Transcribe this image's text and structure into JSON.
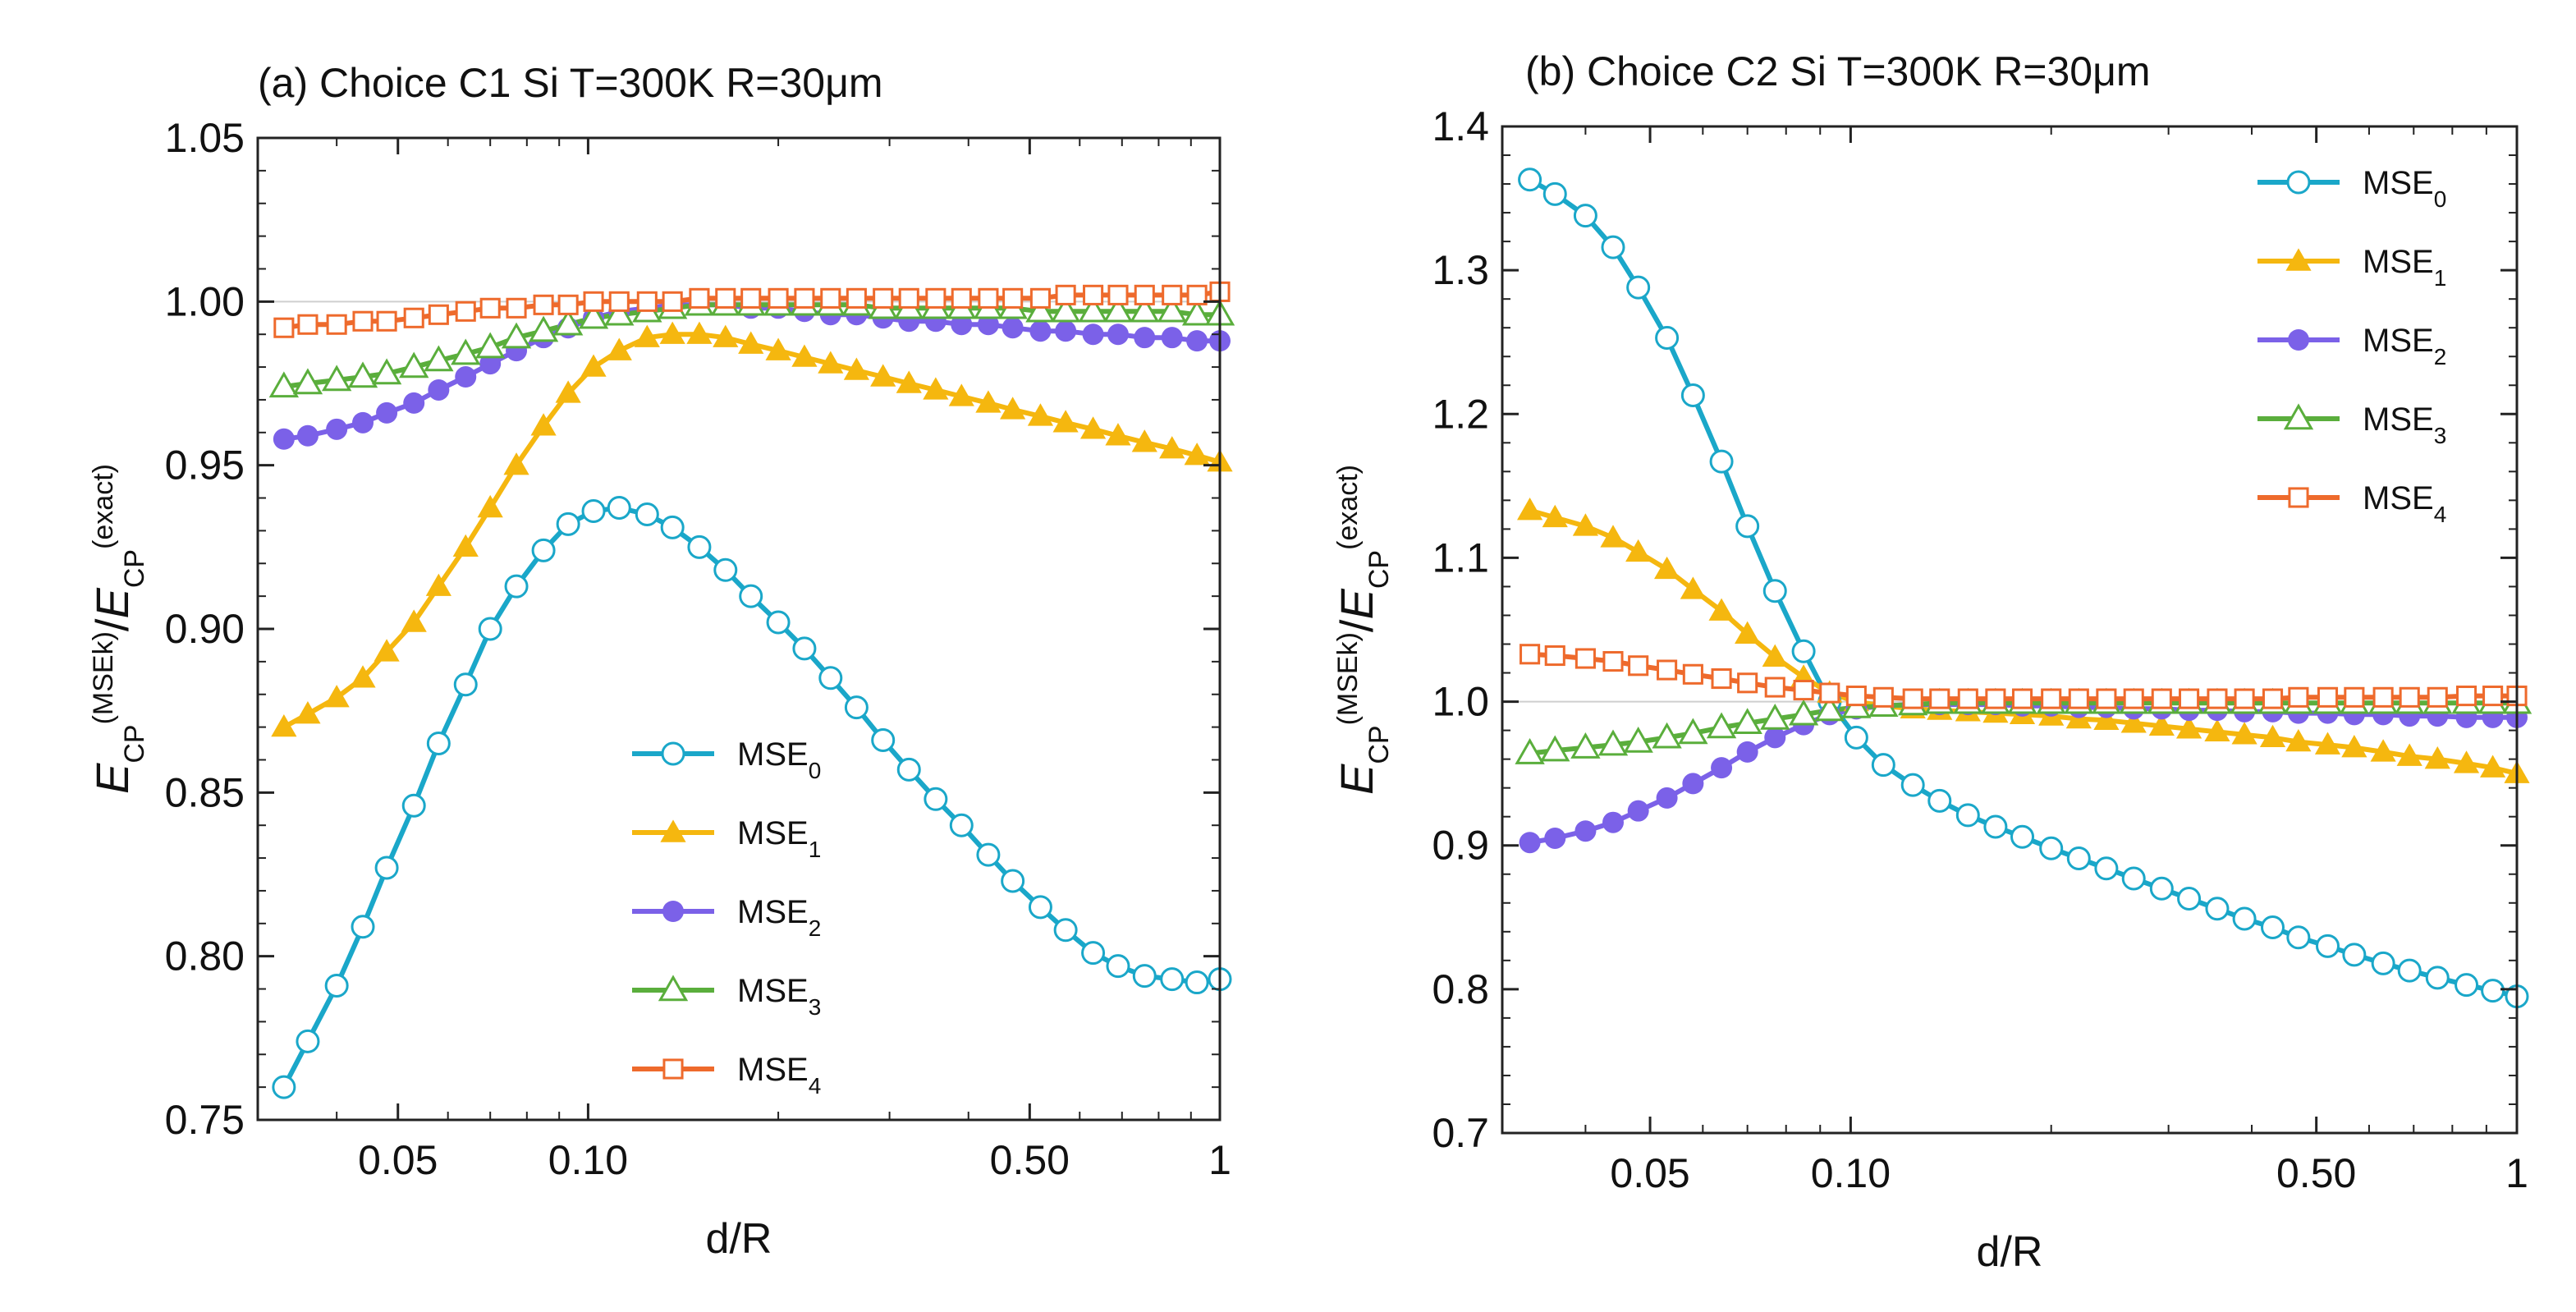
{
  "chart_data": [
    {
      "type": "line",
      "title": "(a) Choice C1 Si T=300K R=30μm",
      "xlabel": "d/R",
      "ylabel": "E_CP^(MSE_k)/E_CP^(exact)",
      "xscale": "log",
      "xlim": [
        0.03,
        1
      ],
      "ylim": [
        0.75,
        1.05
      ],
      "xticks": [
        0.05,
        0.1,
        0.5,
        1
      ],
      "xtick_labels": [
        "0.05",
        "0.10",
        "0.50",
        "1"
      ],
      "yticks": [
        0.75,
        0.8,
        0.85,
        0.9,
        0.95,
        1.0,
        1.05
      ],
      "ytick_labels": [
        "0.75",
        "0.80",
        "0.85",
        "0.90",
        "0.95",
        "1.00",
        "1.05"
      ],
      "reference_line": 1.0,
      "legend_position": "lower-center",
      "x": [
        0.033,
        0.036,
        0.04,
        0.044,
        0.048,
        0.053,
        0.058,
        0.064,
        0.07,
        0.077,
        0.085,
        0.093,
        0.102,
        0.112,
        0.124,
        0.136,
        0.15,
        0.165,
        0.181,
        0.2,
        0.22,
        0.242,
        0.266,
        0.293,
        0.322,
        0.355,
        0.39,
        0.43,
        0.47,
        0.52,
        0.57,
        0.63,
        0.69,
        0.76,
        0.84,
        0.92,
        1.0
      ],
      "series": [
        {
          "name": "MSE0",
          "color": "#1aa7c9",
          "marker": "circle-open",
          "values": [
            0.76,
            0.774,
            0.791,
            0.809,
            0.827,
            0.846,
            0.865,
            0.883,
            0.9,
            0.913,
            0.924,
            0.932,
            0.936,
            0.937,
            0.935,
            0.931,
            0.925,
            0.918,
            0.91,
            0.902,
            0.894,
            0.885,
            0.876,
            0.866,
            0.857,
            0.848,
            0.84,
            0.831,
            0.823,
            0.815,
            0.808,
            0.801,
            0.797,
            0.794,
            0.793,
            0.792,
            0.793
          ]
        },
        {
          "name": "MSE1",
          "color": "#f5b70f",
          "marker": "triangle-filled",
          "values": [
            0.87,
            0.874,
            0.879,
            0.885,
            0.893,
            0.902,
            0.913,
            0.925,
            0.937,
            0.95,
            0.962,
            0.972,
            0.98,
            0.985,
            0.989,
            0.99,
            0.99,
            0.989,
            0.987,
            0.985,
            0.983,
            0.981,
            0.979,
            0.977,
            0.975,
            0.973,
            0.971,
            0.969,
            0.967,
            0.965,
            0.963,
            0.961,
            0.959,
            0.957,
            0.955,
            0.953,
            0.951
          ]
        },
        {
          "name": "MSE2",
          "color": "#7b61e8",
          "marker": "circle-filled",
          "values": [
            0.958,
            0.959,
            0.961,
            0.963,
            0.966,
            0.969,
            0.973,
            0.977,
            0.981,
            0.985,
            0.989,
            0.992,
            0.995,
            0.997,
            0.998,
            0.999,
            0.999,
            0.999,
            0.998,
            0.998,
            0.997,
            0.996,
            0.996,
            0.995,
            0.994,
            0.994,
            0.993,
            0.993,
            0.992,
            0.991,
            0.991,
            0.99,
            0.99,
            0.989,
            0.989,
            0.988,
            0.988
          ]
        },
        {
          "name": "MSE3",
          "color": "#5aae3c",
          "marker": "triangle-open",
          "values": [
            0.974,
            0.975,
            0.976,
            0.977,
            0.978,
            0.98,
            0.982,
            0.984,
            0.986,
            0.989,
            0.991,
            0.993,
            0.995,
            0.996,
            0.997,
            0.998,
            0.999,
            0.999,
            0.999,
            0.999,
            0.999,
            0.999,
            0.999,
            0.998,
            0.998,
            0.998,
            0.998,
            0.998,
            0.998,
            0.997,
            0.997,
            0.997,
            0.997,
            0.997,
            0.997,
            0.996,
            0.996
          ]
        },
        {
          "name": "MSE4",
          "color": "#ee6a2c",
          "marker": "square-open",
          "values": [
            0.992,
            0.993,
            0.993,
            0.994,
            0.994,
            0.995,
            0.996,
            0.997,
            0.998,
            0.998,
            0.999,
            0.999,
            1.0,
            1.0,
            1.0,
            1.0,
            1.001,
            1.001,
            1.001,
            1.001,
            1.001,
            1.001,
            1.001,
            1.001,
            1.001,
            1.001,
            1.001,
            1.001,
            1.001,
            1.001,
            1.002,
            1.002,
            1.002,
            1.002,
            1.002,
            1.002,
            1.003
          ]
        }
      ]
    },
    {
      "type": "line",
      "title": "(b) Choice C2  Si T=300K R=30μm",
      "xlabel": "d/R",
      "ylabel": "E_CP^(MSE_k)/E_CP^(exact)",
      "xscale": "log",
      "xlim": [
        0.03,
        1
      ],
      "ylim": [
        0.7,
        1.4
      ],
      "xticks": [
        0.05,
        0.1,
        0.5,
        1
      ],
      "xtick_labels": [
        "0.05",
        "0.10",
        "0.50",
        "1"
      ],
      "yticks": [
        0.7,
        0.8,
        0.9,
        1.0,
        1.1,
        1.2,
        1.3,
        1.4
      ],
      "ytick_labels": [
        "0.7",
        "0.8",
        "0.9",
        "1.0",
        "1.1",
        "1.2",
        "1.3",
        "1.4"
      ],
      "reference_line": 1.0,
      "legend_position": "upper-right",
      "x": [
        0.033,
        0.036,
        0.04,
        0.044,
        0.048,
        0.053,
        0.058,
        0.064,
        0.07,
        0.077,
        0.085,
        0.093,
        0.102,
        0.112,
        0.124,
        0.136,
        0.15,
        0.165,
        0.181,
        0.2,
        0.22,
        0.242,
        0.266,
        0.293,
        0.322,
        0.355,
        0.39,
        0.43,
        0.47,
        0.52,
        0.57,
        0.63,
        0.69,
        0.76,
        0.84,
        0.92,
        1.0
      ],
      "series": [
        {
          "name": "MSE0",
          "color": "#1aa7c9",
          "marker": "circle-open",
          "values": [
            1.363,
            1.353,
            1.338,
            1.316,
            1.288,
            1.253,
            1.213,
            1.167,
            1.122,
            1.077,
            1.035,
            1.0,
            0.975,
            0.956,
            0.942,
            0.931,
            0.921,
            0.913,
            0.906,
            0.898,
            0.891,
            0.884,
            0.877,
            0.87,
            0.863,
            0.856,
            0.849,
            0.843,
            0.836,
            0.83,
            0.824,
            0.818,
            0.813,
            0.808,
            0.803,
            0.799,
            0.795
          ]
        },
        {
          "name": "MSE1",
          "color": "#f5b70f",
          "marker": "triangle-filled",
          "values": [
            1.133,
            1.128,
            1.122,
            1.114,
            1.104,
            1.092,
            1.078,
            1.063,
            1.047,
            1.031,
            1.017,
            1.006,
            1.0,
            0.997,
            0.995,
            0.994,
            0.993,
            0.992,
            0.991,
            0.99,
            0.988,
            0.987,
            0.985,
            0.983,
            0.981,
            0.979,
            0.977,
            0.975,
            0.972,
            0.97,
            0.968,
            0.965,
            0.962,
            0.96,
            0.957,
            0.954,
            0.95
          ]
        },
        {
          "name": "MSE2",
          "color": "#7b61e8",
          "marker": "circle-filled",
          "values": [
            0.902,
            0.905,
            0.91,
            0.916,
            0.924,
            0.933,
            0.943,
            0.954,
            0.965,
            0.975,
            0.984,
            0.991,
            0.995,
            0.997,
            0.998,
            0.998,
            0.998,
            0.998,
            0.997,
            0.997,
            0.996,
            0.996,
            0.995,
            0.995,
            0.994,
            0.994,
            0.993,
            0.993,
            0.992,
            0.992,
            0.991,
            0.991,
            0.99,
            0.99,
            0.989,
            0.989,
            0.989
          ]
        },
        {
          "name": "MSE3",
          "color": "#5aae3c",
          "marker": "triangle-open",
          "values": [
            0.964,
            0.966,
            0.968,
            0.97,
            0.972,
            0.975,
            0.978,
            0.982,
            0.985,
            0.988,
            0.991,
            0.994,
            0.996,
            0.997,
            0.998,
            0.999,
            0.999,
            0.999,
            0.999,
            0.999,
            0.999,
            0.999,
            0.999,
            0.999,
            0.999,
            0.999,
            0.999,
            0.999,
            0.999,
            0.999,
            0.999,
            0.999,
            0.999,
            0.999,
            0.999,
            0.999,
            0.999
          ]
        },
        {
          "name": "MSE4",
          "color": "#ee6a2c",
          "marker": "square-open",
          "values": [
            1.033,
            1.032,
            1.03,
            1.028,
            1.025,
            1.022,
            1.019,
            1.016,
            1.013,
            1.01,
            1.008,
            1.006,
            1.004,
            1.003,
            1.002,
            1.002,
            1.002,
            1.002,
            1.002,
            1.002,
            1.002,
            1.002,
            1.002,
            1.002,
            1.002,
            1.002,
            1.002,
            1.002,
            1.003,
            1.003,
            1.003,
            1.003,
            1.003,
            1.003,
            1.004,
            1.004,
            1.004
          ]
        }
      ]
    }
  ]
}
